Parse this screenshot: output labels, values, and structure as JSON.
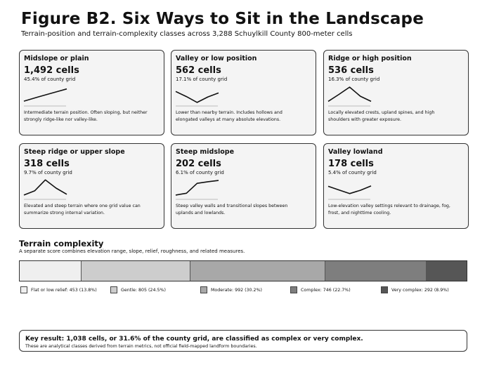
{
  "title": "Figure B2. Six Ways to Sit in the Landscape",
  "subtitle": "Terrain-position and terrain-complexity classes across 3,288 Schuylkill County 800-meter cells",
  "cards": [
    {
      "name": "Midslope or plain",
      "count": "1,492 cells",
      "share": "45.4% of county grid",
      "desc": "Intermediate terrain position. Often sloping, but neither strongly ridge-like nor valley-like.",
      "profile": [
        0.15,
        0.38,
        0.6,
        0.82
      ]
    },
    {
      "name": "Valley or low position",
      "count": "562 cells",
      "share": "17.1% of county grid",
      "desc": "Lower than nearby terrain. Includes hollows and elongated valleys at many absolute elevations.",
      "profile": [
        0.68,
        0.4,
        0.08,
        0.38,
        0.6
      ]
    },
    {
      "name": "Ridge or high position",
      "count": "536 cells",
      "share": "16.3% of county grid",
      "desc": "Locally elevated crests, upland spines, and high shoulders with greater exposure.",
      "profile": [
        0.14,
        0.52,
        0.92,
        0.42,
        0.14
      ]
    },
    {
      "name": "Steep ridge or upper slope",
      "count": "318 cells",
      "share": "9.7% of county grid",
      "desc": "Elevated and steep terrain where one grid value can summarize strong internal variation.",
      "profile": [
        0.12,
        0.35,
        0.95,
        0.5,
        0.16
      ]
    },
    {
      "name": "Steep midslope",
      "count": "202 cells",
      "share": "6.1% of county grid",
      "desc": "Steep valley walls and transitional slopes between uplands and lowlands.",
      "profile": [
        0.12,
        0.22,
        0.76,
        0.85,
        0.92
      ]
    },
    {
      "name": "Valley lowland",
      "count": "178 cells",
      "share": "5.4% of county grid",
      "desc": "Low-elevation valley settings relevant to drainage, fog, frost, and nighttime cooling.",
      "profile": [
        0.6,
        0.4,
        0.2,
        0.38,
        0.62
      ]
    }
  ],
  "complexity": {
    "title": "Terrain complexity",
    "subtitle": "A separate score combines elevation range, slope, relief, roughness, and related measures.",
    "classes": [
      {
        "label": "Flat or low relief: 453 (13.8%)",
        "pct": 13.8,
        "color": "#efefef"
      },
      {
        "label": "Gentle: 805 (24.5%)",
        "pct": 24.5,
        "color": "#cdcdcd"
      },
      {
        "label": "Moderate: 992 (30.2%)",
        "pct": 30.2,
        "color": "#a8a8a8"
      },
      {
        "label": "Complex: 746 (22.7%)",
        "pct": 22.7,
        "color": "#7e7e7e"
      },
      {
        "label": "Very complex: 292 (8.9%)",
        "pct": 8.9,
        "color": "#565656"
      }
    ]
  },
  "key_result": {
    "main": "Key result: 1,038 cells, or 31.6% of the county grid, are classified as complex or very complex.",
    "note": "These are analytical classes derived from terrain metrics, not official field-mapped landform boundaries."
  }
}
